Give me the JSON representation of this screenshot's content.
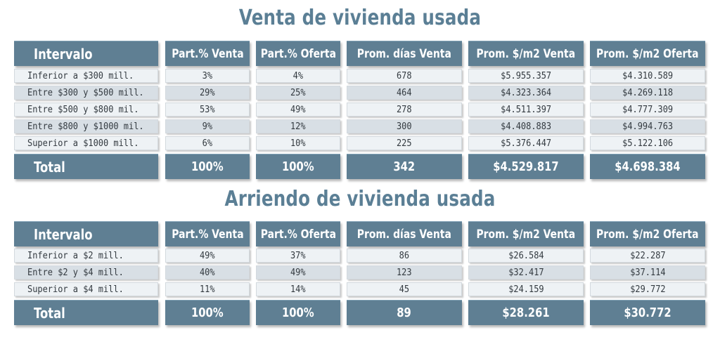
{
  "columns": [
    "Intervalo",
    "Part.% Venta",
    "Part.% Oferta",
    "Prom. días Venta",
    "Prom. $/m2 Venta",
    "Prom. $/m2 Oferta"
  ],
  "venta": {
    "title": "Venta de vivienda usada",
    "rows": [
      [
        "Inferior a $300 mill.",
        "3%",
        "4%",
        "678",
        "$5.955.357",
        "$4.310.589"
      ],
      [
        "Entre $300 y $500 mill.",
        "29%",
        "25%",
        "464",
        "$4.323.364",
        "$4.269.118"
      ],
      [
        "Entre $500 y $800 mil.",
        "53%",
        "49%",
        "278",
        "$4.511.397",
        "$4.777.309"
      ],
      [
        "Entre $800 y $1000 mil.",
        "9%",
        "12%",
        "300",
        "$4.408.883",
        "$4.994.763"
      ],
      [
        "Superior a $1000 mill.",
        "6%",
        "10%",
        "225",
        "$5.376.447",
        "$5.122.106"
      ]
    ],
    "total": [
      "Total",
      "100%",
      "100%",
      "342",
      "$4.529.817",
      "$4.698.384"
    ]
  },
  "arriendo": {
    "title": "Arriendo de vivienda usada",
    "rows": [
      [
        "Inferior a $2 mill.",
        "49%",
        "37%",
        "86",
        "$26.584",
        "$22.287"
      ],
      [
        "Entre $2 y $4 mill.",
        "40%",
        "49%",
        "123",
        "$32.417",
        "$37.114"
      ],
      [
        "Superior a $4 mill.",
        "11%",
        "14%",
        "45",
        "$24.159",
        "$29.772"
      ]
    ],
    "total": [
      "Total",
      "100%",
      "100%",
      "89",
      "$28.261",
      "$30.772"
    ]
  }
}
